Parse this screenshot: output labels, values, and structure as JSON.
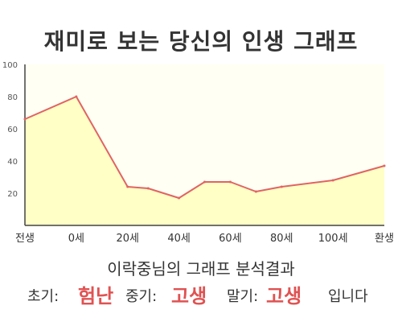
{
  "title": "재미로 보는 당신의 인생 그래프",
  "chart_data": {
    "type": "area",
    "x_labels": [
      "전생",
      "0세",
      "20세",
      "40세",
      "60세",
      "80세",
      "100세",
      "환생"
    ],
    "x": [
      -20,
      0,
      20,
      40,
      60,
      80,
      100,
      120
    ],
    "series": [
      {
        "x": [
          -20,
          0,
          20,
          28,
          40,
          50,
          60,
          70,
          80,
          100,
          120
        ],
        "values": [
          66,
          80,
          24,
          23,
          17,
          27,
          27,
          21,
          24,
          28,
          37
        ]
      }
    ],
    "y_ticks": [
      20,
      40,
      60,
      80,
      100
    ],
    "ylim": [
      0,
      100
    ],
    "xlim": [
      -20,
      120
    ],
    "grid": false,
    "colors": {
      "line": "#e06464",
      "fill": "#ffffc6",
      "plot_bg": "#fffff3"
    }
  },
  "analysis": "이락중님의 그래프 분석결과",
  "result": {
    "early_label": "초기:",
    "early_value": "험난",
    "mid_label": "중기:",
    "mid_value": "고생",
    "late_label": "말기:",
    "late_value": "고생",
    "suffix": "입니다"
  }
}
